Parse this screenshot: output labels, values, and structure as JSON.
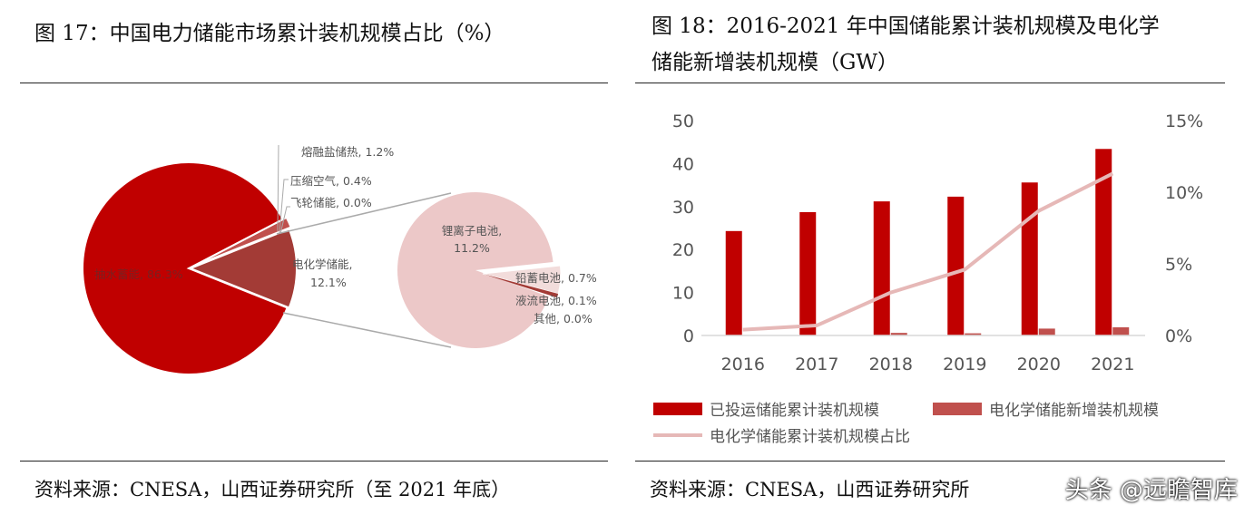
{
  "left": {
    "title": "图 17：中国电力储能市场累计装机规模占比（%）",
    "source": "资料来源：CNESA，山西证券研究所（至 2021 年底）"
  },
  "right": {
    "title_line1": "图 18：2016-2021 年中国储能累计装机规模及电化学",
    "title_line2": "储能新增装机规模（GW）",
    "source": "资料来源：CNESA，山西证券研究所"
  },
  "watermark": "头条 @远瞻智库",
  "colors": {
    "dark_red": "#c00000",
    "brown": "#a33b36",
    "mid_red": "#c0504d",
    "pink": "#ecc8c8",
    "line": "#e6b8b7"
  },
  "chart_data": [
    {
      "type": "pie",
      "title": "中国电力储能市场累计装机规模占比（%）",
      "slices": [
        {
          "label": "抽水蓄能",
          "value": 86.3,
          "text": "抽水蓄能, 86.3%"
        },
        {
          "label": "电化学储能",
          "value": 12.1,
          "text": "电化学储能, 12.1%"
        },
        {
          "label": "熔融盐储热",
          "value": 1.2,
          "text": "熔融盐储热, 1.2%"
        },
        {
          "label": "压缩空气",
          "value": 0.4,
          "text": "压缩空气, 0.4%"
        },
        {
          "label": "飞轮储能",
          "value": 0.0,
          "text": "飞轮储能, 0.0%"
        }
      ],
      "sub_pie": [
        {
          "label": "锂离子电池",
          "value": 11.2,
          "text1": "锂离子电池,",
          "text2": "11.2%"
        },
        {
          "label": "铅蓄电池",
          "value": 0.7,
          "text": "铅蓄电池, 0.7%"
        },
        {
          "label": "液流电池",
          "value": 0.1,
          "text": "液流电池, 0.1%"
        },
        {
          "label": "其他",
          "value": 0.0,
          "text": "其他, 0.0%"
        }
      ],
      "sub_pie_parent_text1": "电化学储能,",
      "sub_pie_parent_text2": "12.1%"
    },
    {
      "type": "bar",
      "title": "2016-2021 年中国储能累计装机规模及电化学储能新增装机规模（GW）",
      "categories": [
        "2016",
        "2017",
        "2018",
        "2019",
        "2020",
        "2021"
      ],
      "ylim": [
        0,
        50
      ],
      "yticks": [
        "0",
        "10",
        "20",
        "30",
        "40",
        "50"
      ],
      "y2lim": [
        0,
        15
      ],
      "y2ticks": [
        "0%",
        "5%",
        "10%",
        "15%"
      ],
      "series": [
        {
          "name": "已投运储能累计装机规模",
          "type": "bar",
          "axis": "left",
          "values": [
            24.3,
            28.7,
            31.2,
            32.3,
            35.6,
            43.4
          ]
        },
        {
          "name": "电化学储能新增装机规模",
          "type": "bar",
          "axis": "left",
          "values": [
            0.1,
            0.1,
            0.6,
            0.5,
            1.6,
            1.9
          ]
        },
        {
          "name": "电化学储能累计装机规模占比",
          "type": "line",
          "axis": "right",
          "values": [
            0.4,
            0.7,
            3.0,
            4.6,
            8.7,
            11.3
          ]
        }
      ],
      "legend": "bottom"
    }
  ]
}
